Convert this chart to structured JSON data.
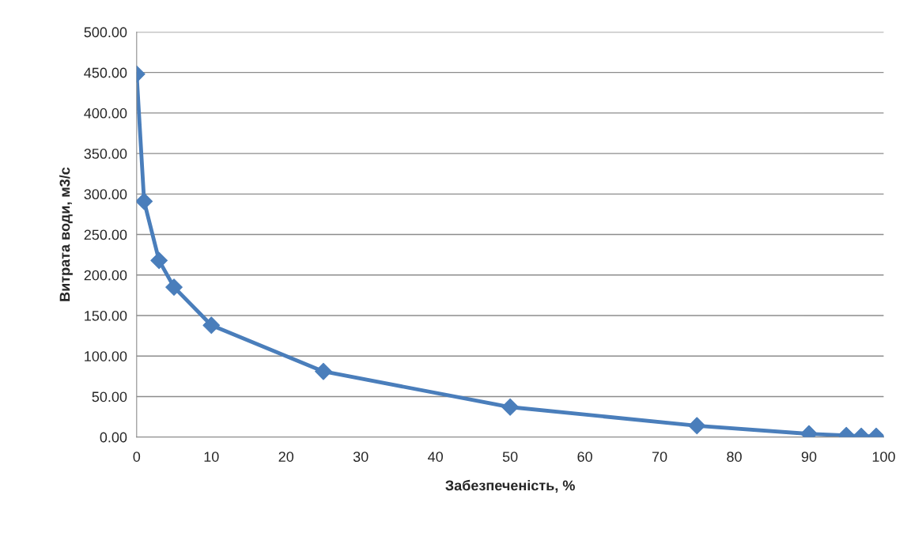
{
  "chart_data": {
    "type": "line",
    "xlabel": "Забезпеченість, %",
    "ylabel": "Витрата води, м3/с",
    "x": [
      0,
      1,
      3,
      5,
      10,
      25,
      50,
      75,
      90,
      95,
      97,
      99
    ],
    "series": [
      {
        "color": "#4a7ebb",
        "values": [
          448,
          291,
          218,
          185,
          138,
          81,
          37,
          14,
          4,
          2,
          1,
          1
        ]
      }
    ],
    "xlim": [
      0,
      100
    ],
    "xticks": [
      0,
      10,
      20,
      30,
      40,
      50,
      60,
      70,
      80,
      90,
      100
    ],
    "ylim": [
      0,
      500
    ],
    "yticks": [
      {
        "value": 0,
        "label": "0.00"
      },
      {
        "value": 50,
        "label": "50.00"
      },
      {
        "value": 100,
        "label": "100.00"
      },
      {
        "value": 150,
        "label": "150.00"
      },
      {
        "value": 200,
        "label": "200.00"
      },
      {
        "value": 250,
        "label": "250.00"
      },
      {
        "value": 300,
        "label": "300.00"
      },
      {
        "value": 350,
        "label": "350.00"
      },
      {
        "value": 400,
        "label": "400.00"
      },
      {
        "value": 450,
        "label": "450.00"
      },
      {
        "value": 500,
        "label": "500.00"
      }
    ],
    "grid": "y",
    "marker": "diamond",
    "line_style": "solid"
  }
}
